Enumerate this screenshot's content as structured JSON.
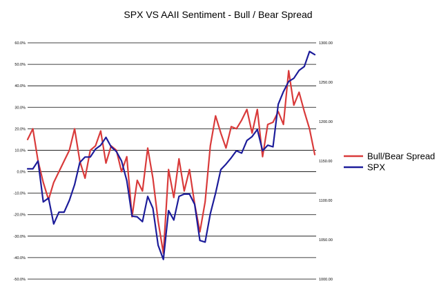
{
  "chart_data": {
    "type": "line",
    "title": "SPX VS AAII Sentiment - Bull / Bear Spread",
    "xlabel": "",
    "ylabel": "",
    "grid": true,
    "legend_position": "right",
    "y_left": {
      "range": [
        -50,
        60
      ],
      "ticks": [
        60,
        50,
        40,
        30,
        20,
        10,
        0,
        -10,
        -20,
        -30,
        -40,
        -50
      ],
      "tick_labels": [
        "60.0%",
        "50.0%",
        "40.0%",
        "30.0%",
        "20.0%",
        "10.0%",
        "0.0%",
        "-10.0%",
        "-20.0%",
        "-30.0%",
        "-40.0%",
        "-50.0%"
      ]
    },
    "y_right": {
      "range": [
        1000,
        1300
      ],
      "ticks": [
        1300,
        1250,
        1200,
        1150,
        1100,
        1050,
        1000
      ],
      "tick_labels": [
        "1300.00",
        "1250.00",
        "1200.00",
        "1150.00",
        "1100.00",
        "1050.00",
        "1000.00"
      ]
    },
    "series": [
      {
        "name": "Bull/Bear Spread",
        "axis": "left",
        "color": "#d93a3a",
        "values": [
          15,
          20,
          5,
          -5,
          -13,
          -5,
          0,
          5,
          10,
          20,
          5,
          -3,
          10,
          12,
          19,
          4,
          12,
          10,
          0,
          7,
          -21,
          -4,
          -9,
          11,
          -3,
          -23,
          -38,
          1,
          -12,
          6,
          -9,
          1,
          -15,
          -28,
          -14,
          12,
          26,
          18,
          11,
          21,
          20,
          24,
          29,
          18,
          29,
          7,
          22,
          23,
          28,
          22,
          47,
          31,
          37,
          28,
          20,
          8
        ]
      },
      {
        "name": "SPX",
        "axis": "right",
        "color": "#1c1c9a",
        "values": [
          1140,
          1140,
          1150,
          1098,
          1103,
          1070,
          1085,
          1085,
          1100,
          1120,
          1148,
          1155,
          1155,
          1165,
          1170,
          1180,
          1168,
          1162,
          1150,
          1125,
          1080,
          1079,
          1073,
          1105,
          1090,
          1043,
          1025,
          1087,
          1075,
          1105,
          1108,
          1108,
          1095,
          1049,
          1047,
          1083,
          1109,
          1139,
          1146,
          1154,
          1163,
          1160,
          1176,
          1181,
          1190,
          1163,
          1170,
          1168,
          1222,
          1238,
          1251,
          1255,
          1265,
          1270,
          1289,
          1285
        ]
      }
    ]
  }
}
